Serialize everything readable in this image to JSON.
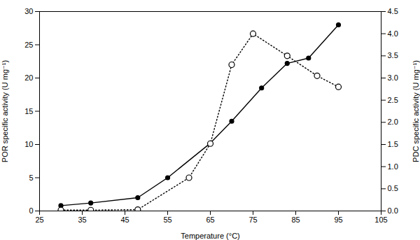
{
  "chart_data": {
    "type": "line",
    "xlabel": "Temperature (°C)",
    "ylabel": "POR specific activity (U mg⁻¹)",
    "y2label": "PDC specific activity (U mg⁻¹)",
    "xlim": [
      25,
      105
    ],
    "xticks": [
      25,
      35,
      45,
      55,
      65,
      75,
      85,
      95,
      105
    ],
    "ylim": [
      0,
      30
    ],
    "yticks": [
      0,
      5,
      10,
      15,
      20,
      25,
      30
    ],
    "y2lim": [
      0,
      4.5
    ],
    "y2ticks": [
      {
        "value": 0.0,
        "label": "0.0"
      },
      0.5,
      {
        "value": 1.0,
        "label": "1.0"
      },
      1.5,
      {
        "value": 2.0,
        "label": "2.0"
      },
      2.5,
      {
        "value": 3.0,
        "label": "3.0"
      },
      3.5,
      {
        "value": 4.0,
        "label": "4.0"
      },
      4.5
    ],
    "grid": false,
    "series": [
      {
        "x": [
          30,
          37,
          48,
          55,
          65,
          70,
          77,
          83,
          88,
          95
        ],
        "values": [
          0.8,
          1.2,
          2.0,
          5.0,
          10.2,
          13.5,
          18.5,
          22.2,
          23.0,
          28.0
        ],
        "color": "black",
        "marker": "circle",
        "line_style": "solid"
      },
      {
        "x": [
          30,
          37,
          48,
          60,
          65,
          70,
          75,
          83,
          90,
          95
        ],
        "values": [
          0.02,
          0.02,
          0.03,
          0.75,
          1.52,
          3.3,
          4.0,
          3.5,
          3.05,
          2.8
        ],
        "color": "black",
        "marker": "open-circle",
        "line_style": "dotted",
        "axis": "y2"
      }
    ]
  }
}
